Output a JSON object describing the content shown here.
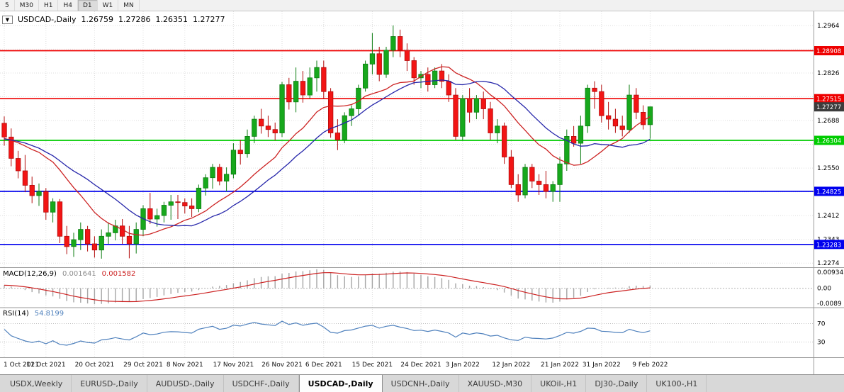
{
  "toolbar": {
    "timeframes": [
      "5",
      "M30",
      "H1",
      "H4",
      "D1",
      "W1",
      "MN"
    ],
    "active": "D1"
  },
  "chart_data": {
    "type": "candlestick",
    "title": {
      "symbol_period": "USDCAD-,Daily",
      "open": "1.26759",
      "high": "1.27286",
      "low": "1.26351",
      "close": "1.27277"
    },
    "view": {
      "p_max": 1.3005,
      "p_min": 1.2262
    },
    "price_axis": {
      "tick_labels": [
        {
          "v": 1.2964,
          "t": "1.2964"
        },
        {
          "v": 1.2826,
          "t": "1.2826"
        },
        {
          "v": 1.2688,
          "t": "1.2688"
        },
        {
          "v": 1.255,
          "t": "1.2550"
        },
        {
          "v": 1.2412,
          "t": "1.2412"
        },
        {
          "v": 1.2343,
          "t": "1.2343"
        },
        {
          "v": 1.2274,
          "t": "1.2274"
        }
      ],
      "grid_values": [
        1.2964,
        1.2895,
        1.2826,
        1.2757,
        1.2688,
        1.2619,
        1.255,
        1.2481,
        1.2412,
        1.2343,
        1.2274
      ]
    },
    "levels": [
      {
        "v": 1.28908,
        "t": "1.28908",
        "color": "#ee0000",
        "line": true
      },
      {
        "v": 1.27515,
        "t": "1.27515",
        "color": "#ee0000",
        "line": true
      },
      {
        "v": 1.27277,
        "t": "1.27277",
        "color": "#3c3c3c",
        "line": false,
        "role": "current-price"
      },
      {
        "v": 1.26304,
        "t": "1.26304",
        "color": "#00cc00",
        "line": true
      },
      {
        "v": 1.24825,
        "t": "1.24825",
        "color": "#0000ee",
        "line": true
      },
      {
        "v": 1.23283,
        "t": "1.23283",
        "color": "#0000ee",
        "line": true
      }
    ],
    "date_axis": {
      "labels": [
        "1 Oct 2021",
        "11 Oct 2021",
        "20 Oct 2021",
        "29 Oct 2021",
        "8 Nov 2021",
        "17 Nov 2021",
        "26 Nov 2021",
        "6 Dec 2021",
        "15 Dec 2021",
        "24 Dec 2021",
        "3 Jan 2022",
        "12 Jan 2022",
        "21 Jan 2022",
        "31 Jan 2022",
        "9 Feb 2022"
      ],
      "indices": [
        0,
        6,
        13,
        20,
        26,
        33,
        40,
        46,
        53,
        60,
        66,
        73,
        80,
        86,
        93
      ]
    },
    "ma": {
      "fast": {
        "period": 13,
        "color": "#cc2222"
      },
      "slow": {
        "period": 20,
        "color": "#2626aa"
      }
    },
    "colors": {
      "up": "#17a81c",
      "up_dark": "#0d7d12",
      "down": "#f21515",
      "down_dark": "#b20c0c",
      "grid": "#dedede",
      "axis_text": "#000000",
      "separator": "#9a9a9a"
    },
    "history_closes": [
      1.257,
      1.2585,
      1.26,
      1.259,
      1.261,
      1.2625,
      1.264,
      1.262,
      1.26,
      1.2615,
      1.263,
      1.265,
      1.2665,
      1.265,
      1.2635,
      1.262,
      1.2605,
      1.259,
      1.261,
      1.263,
      1.265,
      1.266,
      1.267,
      1.266,
      1.265
    ],
    "candles": [
      [
        1.268,
        1.27,
        1.2615,
        1.264
      ],
      [
        1.264,
        1.2665,
        1.2555,
        1.2578
      ],
      [
        1.2578,
        1.26,
        1.252,
        1.2542
      ],
      [
        1.2542,
        1.2588,
        1.248,
        1.25
      ],
      [
        1.25,
        1.2525,
        1.2448,
        1.247
      ],
      [
        1.247,
        1.2505,
        1.244,
        1.2482
      ],
      [
        1.2482,
        1.2492,
        1.24,
        1.2422
      ],
      [
        1.2422,
        1.2462,
        1.2392,
        1.2452
      ],
      [
        1.2452,
        1.246,
        1.2332,
        1.2352
      ],
      [
        1.2352,
        1.2382,
        1.23,
        1.2322
      ],
      [
        1.2322,
        1.2362,
        1.2292,
        1.2342
      ],
      [
        1.2342,
        1.2392,
        1.2312,
        1.2372
      ],
      [
        1.2372,
        1.2382,
        1.2308,
        1.233
      ],
      [
        1.233,
        1.2352,
        1.229,
        1.2312
      ],
      [
        1.2312,
        1.2372,
        1.2287,
        1.2352
      ],
      [
        1.2352,
        1.2392,
        1.233,
        1.2362
      ],
      [
        1.2362,
        1.24,
        1.234,
        1.2382
      ],
      [
        1.2382,
        1.2402,
        1.233,
        1.2352
      ],
      [
        1.2352,
        1.2382,
        1.2288,
        1.233
      ],
      [
        1.233,
        1.2392,
        1.2302,
        1.2372
      ],
      [
        1.2372,
        1.2442,
        1.2352,
        1.2432
      ],
      [
        1.2432,
        1.2478,
        1.2388,
        1.2402
      ],
      [
        1.2402,
        1.2432,
        1.238,
        1.2412
      ],
      [
        1.2412,
        1.2452,
        1.2392,
        1.2442
      ],
      [
        1.2442,
        1.2472,
        1.24,
        1.2452
      ],
      [
        1.2452,
        1.2472,
        1.2402,
        1.245
      ],
      [
        1.245,
        1.2462,
        1.2418,
        1.244
      ],
      [
        1.244,
        1.2462,
        1.2408,
        1.2432
      ],
      [
        1.2432,
        1.2502,
        1.2422,
        1.2492
      ],
      [
        1.2492,
        1.2532,
        1.247,
        1.2522
      ],
      [
        1.2522,
        1.2562,
        1.249,
        1.2552
      ],
      [
        1.2552,
        1.2562,
        1.25,
        1.2512
      ],
      [
        1.2512,
        1.2552,
        1.2482,
        1.2532
      ],
      [
        1.2532,
        1.2622,
        1.252,
        1.2602
      ],
      [
        1.2602,
        1.2632,
        1.256,
        1.2592
      ],
      [
        1.2592,
        1.2662,
        1.258,
        1.2642
      ],
      [
        1.2642,
        1.2702,
        1.2622,
        1.2692
      ],
      [
        1.2692,
        1.2722,
        1.265,
        1.2672
      ],
      [
        1.2672,
        1.2702,
        1.264,
        1.2662
      ],
      [
        1.2662,
        1.2682,
        1.263,
        1.2652
      ],
      [
        1.2652,
        1.28,
        1.264,
        1.2792
      ],
      [
        1.2792,
        1.2812,
        1.272,
        1.2742
      ],
      [
        1.2742,
        1.2842,
        1.2712,
        1.2802
      ],
      [
        1.2802,
        1.2832,
        1.274,
        1.2762
      ],
      [
        1.2762,
        1.2842,
        1.2752,
        1.2812
      ],
      [
        1.2812,
        1.2862,
        1.2772,
        1.2842
      ],
      [
        1.2842,
        1.2862,
        1.275,
        1.2772
      ],
      [
        1.2772,
        1.2782,
        1.2638,
        1.2652
      ],
      [
        1.2652,
        1.2692,
        1.2602,
        1.2632
      ],
      [
        1.2632,
        1.2712,
        1.2622,
        1.2702
      ],
      [
        1.2702,
        1.2732,
        1.2672,
        1.2722
      ],
      [
        1.2722,
        1.2792,
        1.2702,
        1.2782
      ],
      [
        1.2782,
        1.2862,
        1.2772,
        1.2852
      ],
      [
        1.2852,
        1.2942,
        1.2822,
        1.2882
      ],
      [
        1.2882,
        1.2902,
        1.2802,
        1.2822
      ],
      [
        1.2822,
        1.2902,
        1.2812,
        1.2892
      ],
      [
        1.2892,
        1.2964,
        1.2872,
        1.2932
      ],
      [
        1.2932,
        1.2952,
        1.2872,
        1.2892
      ],
      [
        1.2892,
        1.2912,
        1.2832,
        1.2862
      ],
      [
        1.2862,
        1.2872,
        1.2792,
        1.2812
      ],
      [
        1.2812,
        1.2832,
        1.2782,
        1.2822
      ],
      [
        1.2822,
        1.2842,
        1.2772,
        1.2792
      ],
      [
        1.2792,
        1.2842,
        1.2782,
        1.2832
      ],
      [
        1.2832,
        1.2852,
        1.2782,
        1.2802
      ],
      [
        1.2802,
        1.2822,
        1.2742,
        1.2762
      ],
      [
        1.2762,
        1.2782,
        1.2632,
        1.2642
      ],
      [
        1.2642,
        1.2762,
        1.263,
        1.2752
      ],
      [
        1.2752,
        1.2782,
        1.2682,
        1.2712
      ],
      [
        1.2712,
        1.2762,
        1.2692,
        1.2752
      ],
      [
        1.2752,
        1.2772,
        1.2692,
        1.2722
      ],
      [
        1.2722,
        1.2742,
        1.2632,
        1.2652
      ],
      [
        1.2652,
        1.2692,
        1.2622,
        1.2672
      ],
      [
        1.2672,
        1.2682,
        1.2562,
        1.2582
      ],
      [
        1.2582,
        1.2602,
        1.2492,
        1.2502
      ],
      [
        1.2502,
        1.2532,
        1.2452,
        1.2472
      ],
      [
        1.2472,
        1.2562,
        1.2462,
        1.2552
      ],
      [
        1.2552,
        1.2562,
        1.2492,
        1.2512
      ],
      [
        1.2512,
        1.2532,
        1.2472,
        1.2502
      ],
      [
        1.2502,
        1.2542,
        1.2462,
        1.2482
      ],
      [
        1.2482,
        1.2512,
        1.2452,
        1.2502
      ],
      [
        1.2502,
        1.2582,
        1.2452,
        1.2562
      ],
      [
        1.2562,
        1.2662,
        1.2542,
        1.2642
      ],
      [
        1.2642,
        1.2672,
        1.2612,
        1.2622
      ],
      [
        1.2622,
        1.2702,
        1.2562,
        1.2672
      ],
      [
        1.2672,
        1.2792,
        1.2652,
        1.2782
      ],
      [
        1.2782,
        1.2802,
        1.2722,
        1.2772
      ],
      [
        1.2772,
        1.2792,
        1.2682,
        1.2702
      ],
      [
        1.2702,
        1.2742,
        1.2662,
        1.2692
      ],
      [
        1.2692,
        1.2722,
        1.2652,
        1.2672
      ],
      [
        1.2672,
        1.2702,
        1.2642,
        1.2662
      ],
      [
        1.2662,
        1.2792,
        1.2652,
        1.2762
      ],
      [
        1.2762,
        1.2782,
        1.2692,
        1.2712
      ],
      [
        1.2712,
        1.2732,
        1.2662,
        1.2676
      ],
      [
        1.26759,
        1.27286,
        1.26351,
        1.27277
      ]
    ]
  },
  "indicators": {
    "macd": {
      "label": "MACD(12,26,9)",
      "value": "0.001641",
      "signal_value": "0.001582",
      "axis_labels": [
        "0.009345",
        "0.00",
        "-0.0089"
      ],
      "fast": 12,
      "slow": 26,
      "signal": 9,
      "hist_color": "#a6a6a6",
      "signal_color": "#cc2222"
    },
    "rsi": {
      "label": "RSI(14)",
      "value": "54.8199",
      "period": 14,
      "levels": [
        70,
        30
      ],
      "color": "#4f81bd"
    }
  },
  "tabs": [
    "USDX,Weekly",
    "EURUSD-,Daily",
    "AUDUSD-,Daily",
    "USDCHF-,Daily",
    "USDCAD-,Daily",
    "USDCNH-,Daily",
    "XAUUSD-,M30",
    "UKOil-,H1",
    "DJ30-,Daily",
    "UK100-,H1"
  ],
  "active_tab": "USDCAD-,Daily"
}
